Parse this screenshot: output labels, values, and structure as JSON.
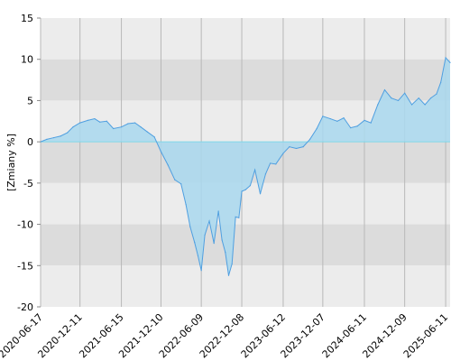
{
  "chart_data": {
    "type": "area",
    "title": "",
    "xlabel": "",
    "ylabel": "[Zmiany %]",
    "ylim": [
      -20,
      15
    ],
    "y_ticks": [
      15,
      10,
      5,
      0,
      -5,
      -10,
      -15,
      -20
    ],
    "y_tick_labels": [
      "15",
      "10",
      "5",
      "0",
      "-5",
      "-10",
      "-15",
      "-20"
    ],
    "xlim": [
      "2020-06-17",
      "2025-07-01"
    ],
    "x_ticks": [
      "2020-06-17",
      "2020-12-11",
      "2021-06-15",
      "2021-12-10",
      "2022-06-09",
      "2022-12-08",
      "2023-06-12",
      "2023-12-07",
      "2024-06-11",
      "2024-12-09",
      "2025-06-11"
    ],
    "grid": true,
    "legend": "none",
    "colors": {
      "line": "#4f9fe0",
      "fill": "#a9d8ee",
      "band_dark": "#dcdcdc",
      "band_light": "#ececec",
      "zero_line": "#7fd7e8",
      "vgrid": "#b8b8b8"
    },
    "series": [
      {
        "x": [
          "2020-06-17",
          "2020-07-15",
          "2020-08-15",
          "2020-09-15",
          "2020-10-15",
          "2020-11-10",
          "2020-12-11",
          "2021-01-15",
          "2021-02-15",
          "2021-03-10",
          "2021-04-10",
          "2021-05-10",
          "2021-06-15",
          "2021-07-15",
          "2021-08-15",
          "2021-09-10",
          "2021-10-10",
          "2021-11-10",
          "2021-12-10",
          "2022-01-10",
          "2022-02-10",
          "2022-03-10",
          "2022-04-01",
          "2022-04-20",
          "2022-05-10",
          "2022-05-25",
          "2022-06-09",
          "2022-06-25",
          "2022-07-15",
          "2022-08-05",
          "2022-08-25",
          "2022-09-10",
          "2022-09-25",
          "2022-10-10",
          "2022-10-25",
          "2022-11-10",
          "2022-11-25",
          "2022-12-08",
          "2022-12-25",
          "2023-01-15",
          "2023-02-05",
          "2023-03-01",
          "2023-03-25",
          "2023-04-15",
          "2023-05-10",
          "2023-06-12",
          "2023-07-10",
          "2023-08-10",
          "2023-09-10",
          "2023-10-10",
          "2023-11-10",
          "2023-12-07",
          "2024-01-10",
          "2024-02-10",
          "2024-03-10",
          "2024-04-10",
          "2024-05-10",
          "2024-06-11",
          "2024-07-10",
          "2024-08-10",
          "2024-09-10",
          "2024-10-10",
          "2024-11-10",
          "2024-12-09",
          "2025-01-10",
          "2025-02-10",
          "2025-03-10",
          "2025-04-05",
          "2025-05-01",
          "2025-05-20",
          "2025-06-11",
          "2025-07-01"
        ],
        "values": [
          0.0,
          0.3,
          0.5,
          0.7,
          1.1,
          1.8,
          2.3,
          2.6,
          2.8,
          2.4,
          2.5,
          1.6,
          1.8,
          2.2,
          2.3,
          1.8,
          1.2,
          0.6,
          -1.2,
          -2.8,
          -4.6,
          -5.1,
          -7.6,
          -10.3,
          -12.2,
          -13.8,
          -15.6,
          -11.3,
          -9.6,
          -12.3,
          -8.4,
          -11.9,
          -13.4,
          -16.2,
          -14.8,
          -9.1,
          -9.2,
          -6.0,
          -5.8,
          -5.3,
          -3.4,
          -6.3,
          -3.9,
          -2.6,
          -2.7,
          -1.4,
          -0.6,
          -0.8,
          -0.6,
          0.3,
          1.6,
          3.1,
          2.8,
          2.5,
          2.9,
          1.7,
          1.9,
          2.6,
          2.3,
          4.5,
          6.3,
          5.3,
          5.0,
          5.9,
          4.5,
          5.3,
          4.5,
          5.3,
          5.8,
          7.2,
          10.2,
          9.6
        ]
      }
    ]
  }
}
